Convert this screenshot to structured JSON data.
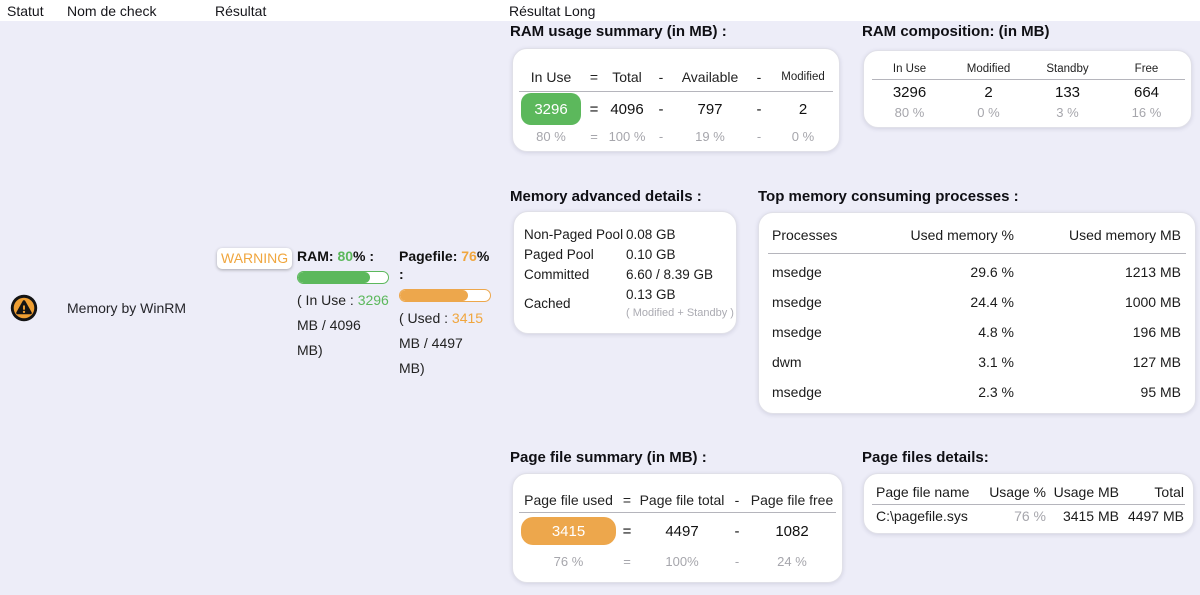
{
  "colors": {
    "green": "#5cb85c",
    "orange": "#f0a63e",
    "background": "#ededf8",
    "grey_text": "#a6a6ac"
  },
  "table_header": {
    "columns": [
      "Statut",
      "Nom de check",
      "Résultat",
      "Résultat Long"
    ]
  },
  "row": {
    "status_icon": "warning-status-icon",
    "check_name": "Memory by WinRM",
    "badge": "WARNING",
    "ram": {
      "title_label": "RAM:",
      "title_value": "80",
      "title_suffix": "% :",
      "bar_percent": 80,
      "detail_prefix": "( In Use :",
      "detail_value": "3296",
      "detail_suffix": "MB / 4096 MB)"
    },
    "pagefile": {
      "title_label": "Pagefile:",
      "title_value": "76",
      "title_suffix": "% :",
      "bar_percent": 76,
      "detail_prefix": "( Used :",
      "detail_value": "3415",
      "detail_suffix": "MB / 4497 MB)"
    }
  },
  "ram_summary": {
    "title": "RAM usage summary (in MB) :",
    "headers": [
      "In Use",
      "=",
      "Total",
      "-",
      "Available",
      "-",
      "Modified"
    ],
    "values": [
      "3296",
      "=",
      "4096",
      "-",
      "797",
      "-",
      "2"
    ],
    "percents": [
      "80 %",
      "=",
      "100 %",
      "-",
      "19 %",
      "-",
      "0 %"
    ]
  },
  "ram_composition": {
    "title": "RAM composition: (in MB)",
    "headers": [
      "In Use",
      "Modified",
      "Standby",
      "Free"
    ],
    "values": [
      "3296",
      "2",
      "133",
      "664"
    ],
    "percents": [
      "80 %",
      "0 %",
      "3 %",
      "16 %"
    ]
  },
  "memory_advanced": {
    "title": "Memory advanced details :",
    "rows": [
      {
        "label": "Non-Paged Pool",
        "value": "0.08 GB"
      },
      {
        "label": "Paged Pool",
        "value": "0.10 GB"
      },
      {
        "label": "Committed",
        "value": "6.60 / 8.39 GB"
      },
      {
        "label": "Cached",
        "value": "0.13 GB",
        "note": "( Modified + Standby )"
      }
    ]
  },
  "top_processes": {
    "title": "Top memory consuming processes :",
    "headers": [
      "Processes",
      "Used memory %",
      "Used memory MB"
    ],
    "rows": [
      {
        "name": "msedge",
        "pct": "29.6 %",
        "mb": "1213 MB"
      },
      {
        "name": "msedge",
        "pct": "24.4 %",
        "mb": "1000 MB"
      },
      {
        "name": "msedge",
        "pct": "4.8 %",
        "mb": "196 MB"
      },
      {
        "name": "dwm",
        "pct": "3.1 %",
        "mb": "127 MB"
      },
      {
        "name": "msedge",
        "pct": "2.3 %",
        "mb": "95 MB"
      }
    ]
  },
  "page_summary": {
    "title": "Page file summary (in MB) :",
    "headers": [
      "Page file used",
      "=",
      "Page file total",
      "-",
      "Page file free"
    ],
    "values": [
      "3415",
      "=",
      "4497",
      "-",
      "1082"
    ],
    "percents": [
      "76 %",
      "=",
      "100%",
      "-",
      "24 %"
    ]
  },
  "page_details": {
    "title": "Page files details:",
    "headers": [
      "Page file name",
      "Usage %",
      "Usage MB",
      "Total"
    ],
    "rows": [
      {
        "name": "C:\\pagefile.sys",
        "pct": "76 %",
        "mb": "3415 MB",
        "total": "4497 MB"
      }
    ]
  }
}
